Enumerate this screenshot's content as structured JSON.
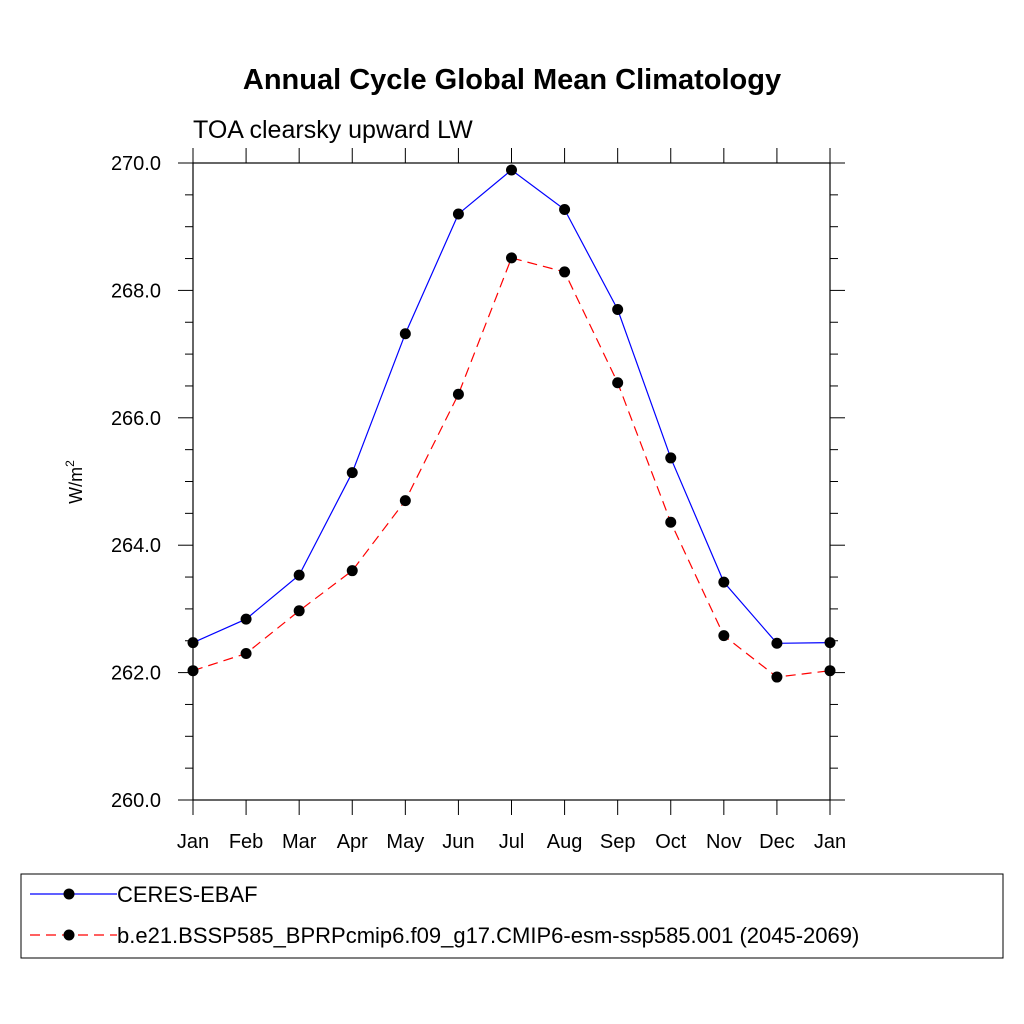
{
  "chart_data": {
    "type": "line",
    "title": "Annual Cycle Global Mean Climatology",
    "subtitle": "TOA clearsky upward LW",
    "ylabel": "W/m",
    "ylabel_superscript": "2",
    "xlabel": "",
    "categories": [
      "Jan",
      "Feb",
      "Mar",
      "Apr",
      "May",
      "Jun",
      "Jul",
      "Aug",
      "Sep",
      "Oct",
      "Nov",
      "Dec",
      "Jan"
    ],
    "ylim": [
      260.0,
      270.0
    ],
    "yticks": [
      "260.0",
      "262.0",
      "264.0",
      "266.0",
      "268.0",
      "270.0"
    ],
    "ytick_values": [
      260,
      262,
      264,
      266,
      268,
      270
    ],
    "grid": false,
    "legend_position": "bottom",
    "series": [
      {
        "name": "CERES-EBAF",
        "color": "#0000ff",
        "line_style": "solid",
        "marker": "filled-circle",
        "values": [
          262.47,
          262.84,
          263.53,
          265.14,
          267.32,
          269.2,
          269.89,
          269.27,
          267.7,
          265.37,
          263.42,
          262.46,
          262.47
        ]
      },
      {
        "name": "b.e21.BSSP585_BPRPcmip6.f09_g17.CMIP6-esm-ssp585.001 (2045-2069)",
        "color": "#ff0000",
        "line_style": "dashed",
        "marker": "filled-circle",
        "values": [
          262.03,
          262.3,
          262.97,
          263.6,
          264.7,
          266.37,
          268.51,
          268.29,
          266.55,
          264.36,
          262.58,
          261.93,
          262.03
        ]
      }
    ]
  }
}
